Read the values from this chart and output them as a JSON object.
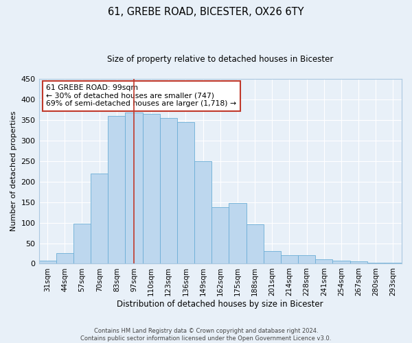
{
  "title": "61, GREBE ROAD, BICESTER, OX26 6TY",
  "subtitle": "Size of property relative to detached houses in Bicester",
  "xlabel": "Distribution of detached houses by size in Bicester",
  "ylabel": "Number of detached properties",
  "footer_line1": "Contains HM Land Registry data © Crown copyright and database right 2024.",
  "footer_line2": "Contains public sector information licensed under the Open Government Licence v3.0.",
  "bin_labels": [
    "31sqm",
    "44sqm",
    "57sqm",
    "70sqm",
    "83sqm",
    "97sqm",
    "110sqm",
    "123sqm",
    "136sqm",
    "149sqm",
    "162sqm",
    "175sqm",
    "188sqm",
    "201sqm",
    "214sqm",
    "228sqm",
    "241sqm",
    "254sqm",
    "267sqm",
    "280sqm",
    "293sqm"
  ],
  "bar_values": [
    8,
    25,
    98,
    220,
    360,
    368,
    365,
    355,
    345,
    250,
    138,
    148,
    96,
    30,
    20,
    20,
    10,
    7,
    5,
    2,
    3
  ],
  "bar_color": "#bdd7ee",
  "bar_edge_color": "#6baed6",
  "ylim": [
    0,
    450
  ],
  "yticks": [
    0,
    50,
    100,
    150,
    200,
    250,
    300,
    350,
    400,
    450
  ],
  "vline_index": 5,
  "vline_color": "#c0392b",
  "annotation_title": "61 GREBE ROAD: 99sqm",
  "annotation_line2": "← 30% of detached houses are smaller (747)",
  "annotation_line3": "69% of semi-detached houses are larger (1,718) →",
  "annotation_box_color": "#c0392b",
  "bg_color": "#e8f0f8",
  "grid_color": "#ffffff",
  "spine_color": "#aac8e0"
}
